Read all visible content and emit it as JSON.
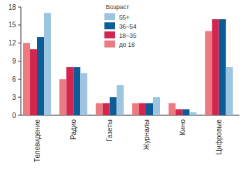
{
  "chart_data": {
    "type": "bar",
    "categories": [
      "Телевидение",
      "Радио",
      "Газеты",
      "Журналы",
      "Кино",
      "Цифровые"
    ],
    "series": [
      {
        "name": "до 18",
        "color": "#ea7b81",
        "values": [
          12,
          6,
          2,
          2,
          2,
          14
        ]
      },
      {
        "name": "18–35",
        "color": "#d3264f",
        "values": [
          11,
          8,
          2,
          2,
          1,
          16
        ]
      },
      {
        "name": "36–54",
        "color": "#0b5c97",
        "values": [
          13,
          8,
          3,
          2,
          1,
          16
        ]
      },
      {
        "name": "55+",
        "color": "#9dc4e1",
        "values": [
          17,
          7,
          5,
          3,
          0.5,
          8
        ]
      }
    ],
    "legend_title": "Возраст",
    "legend": "top",
    "ylim": [
      0,
      18
    ],
    "yticks": [
      0,
      3,
      6,
      9,
      12,
      15,
      18
    ],
    "grid": false
  }
}
